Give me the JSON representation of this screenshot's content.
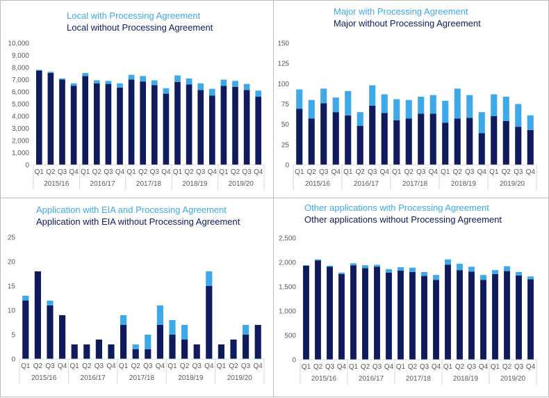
{
  "colors": {
    "with": "#3DA9E8",
    "without": "#0F1B5C",
    "axis": "#d9d9d9",
    "text": "#595959"
  },
  "chart_data": [
    {
      "type": "bar",
      "stacked": true,
      "legend_with": "Local with Processing Agreement",
      "legend_without": "Local without Processing Agreement",
      "quarters": [
        "Q1",
        "Q2",
        "Q3",
        "Q4",
        "Q1",
        "Q2",
        "Q3",
        "Q4",
        "Q1",
        "Q2",
        "Q3",
        "Q4",
        "Q1",
        "Q2",
        "Q3",
        "Q4",
        "Q1",
        "Q2",
        "Q3",
        "Q4"
      ],
      "years": [
        "2015/16",
        "2016/17",
        "2017/18",
        "2018/19",
        "2019/20"
      ],
      "yticks": [
        "0",
        "1,000",
        "2,000",
        "3,000",
        "4,000",
        "5,000",
        "6,000",
        "7,000",
        "8,000",
        "9,000",
        "10,000"
      ],
      "ylim": [
        0,
        10000
      ],
      "series": [
        {
          "name": "Local without Processing Agreement",
          "values": [
            7750,
            7550,
            7000,
            6500,
            7300,
            6700,
            6650,
            6350,
            7000,
            6850,
            6550,
            5850,
            6800,
            6600,
            6150,
            5700,
            6500,
            6400,
            6150,
            5600
          ]
        },
        {
          "name": "Local with Processing Agreement",
          "values": [
            50,
            100,
            100,
            200,
            250,
            250,
            250,
            350,
            400,
            450,
            400,
            450,
            550,
            500,
            550,
            550,
            500,
            500,
            500,
            500
          ]
        }
      ]
    },
    {
      "type": "bar",
      "stacked": true,
      "legend_with": "Major with Processing Agreement",
      "legend_without": "Major without Processing Agreement",
      "quarters": [
        "Q1",
        "Q2",
        "Q3",
        "Q4",
        "Q1",
        "Q2",
        "Q3",
        "Q4",
        "Q1",
        "Q2",
        "Q3",
        "Q4",
        "Q1",
        "Q2",
        "Q3",
        "Q4",
        "Q1",
        "Q2",
        "Q3",
        "Q4"
      ],
      "years": [
        "2015/16",
        "2016/17",
        "2017/18",
        "2018/19",
        "2019/20"
      ],
      "yticks": [
        "0",
        "25",
        "50",
        "75",
        "100",
        "125",
        "150"
      ],
      "ylim": [
        0,
        150
      ],
      "series": [
        {
          "name": "Major without Processing Agreement",
          "values": [
            69,
            57,
            76,
            65,
            61,
            48,
            73,
            64,
            55,
            57,
            63,
            63,
            52,
            57,
            58,
            39,
            60,
            54,
            47,
            43
          ]
        },
        {
          "name": "Major with Processing Agreement",
          "values": [
            24,
            23,
            18,
            18,
            30,
            17,
            25,
            23,
            26,
            23,
            21,
            23,
            27,
            37,
            28,
            26,
            27,
            30,
            28,
            18
          ]
        }
      ]
    },
    {
      "type": "bar",
      "stacked": true,
      "legend_with": "Application with EIA and Processing Agreement",
      "legend_without": "Application with EIA without Processing Agreement",
      "quarters": [
        "Q1",
        "Q2",
        "Q3",
        "Q4",
        "Q1",
        "Q2",
        "Q3",
        "Q4",
        "Q1",
        "Q2",
        "Q3",
        "Q4",
        "Q1",
        "Q2",
        "Q3",
        "Q4",
        "Q1",
        "Q2",
        "Q3",
        "Q4"
      ],
      "years": [
        "2015/16",
        "2016/17",
        "2017/18",
        "2018/19",
        "2019/20"
      ],
      "yticks": [
        "0",
        "5",
        "10",
        "15",
        "20",
        "25"
      ],
      "ylim": [
        0,
        25
      ],
      "series": [
        {
          "name": "Application with EIA without Processing Agreement",
          "values": [
            12,
            18,
            11,
            9,
            3,
            3,
            4,
            3,
            7,
            2,
            2,
            7,
            5,
            4,
            3,
            15,
            3,
            4,
            5,
            7
          ]
        },
        {
          "name": "Application with EIA and Processing Agreement",
          "values": [
            1,
            0,
            1,
            0,
            0,
            0,
            0,
            0,
            2,
            1,
            3,
            4,
            3,
            3,
            0,
            3,
            0,
            0,
            2,
            0
          ]
        }
      ]
    },
    {
      "type": "bar",
      "stacked": true,
      "legend_with": "Other applications with Processing Agreement",
      "legend_without": "Other applications without Processing Agreement",
      "quarters": [
        "Q1",
        "Q2",
        "Q3",
        "Q4",
        "Q1",
        "Q2",
        "Q3",
        "Q4",
        "Q1",
        "Q2",
        "Q3",
        "Q4",
        "Q1",
        "Q2",
        "Q3",
        "Q4",
        "Q1",
        "Q2",
        "Q3",
        "Q4"
      ],
      "years": [
        "2015/16",
        "2016/17",
        "2017/18",
        "2018/19",
        "2019/20"
      ],
      "yticks": [
        "0",
        "500",
        "1,000",
        "1,500",
        "2,000",
        "2,500"
      ],
      "ylim": [
        0,
        2500
      ],
      "series": [
        {
          "name": "Other applications without Processing Agreement",
          "values": [
            1930,
            2040,
            1910,
            1760,
            1940,
            1880,
            1910,
            1790,
            1830,
            1800,
            1720,
            1640,
            1950,
            1840,
            1810,
            1640,
            1760,
            1820,
            1730,
            1650
          ]
        },
        {
          "name": "Other applications with Processing Agreement",
          "values": [
            10,
            20,
            20,
            30,
            40,
            60,
            40,
            70,
            70,
            90,
            80,
            100,
            110,
            130,
            100,
            100,
            80,
            100,
            70,
            60
          ]
        }
      ]
    }
  ]
}
